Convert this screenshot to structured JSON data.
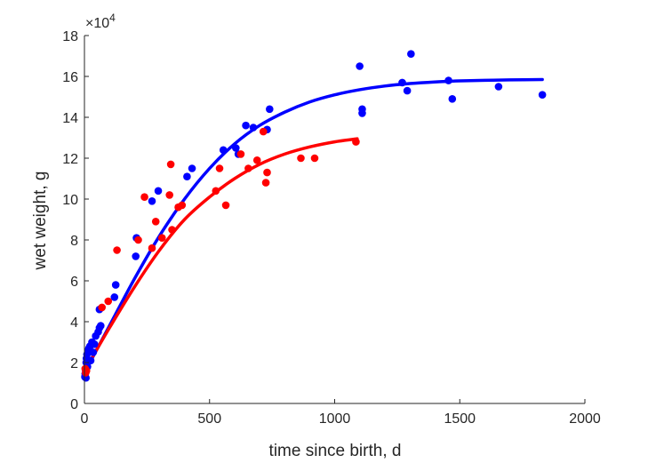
{
  "chart_data": {
    "type": "scatter",
    "title": "",
    "xlabel": "time since birth, d",
    "ylabel": "wet weight, g",
    "xlim": [
      0,
      2000
    ],
    "ylim": [
      0,
      180000
    ],
    "xticks": [
      "0",
      "500",
      "1000",
      "1500",
      "2000"
    ],
    "xtick_values": [
      0,
      500,
      1000,
      1500,
      2000
    ],
    "yticks": [
      "0",
      "2",
      "4",
      "6",
      "8",
      "10",
      "12",
      "14",
      "16",
      "18"
    ],
    "ytick_values": [
      0,
      20000,
      40000,
      60000,
      80000,
      100000,
      120000,
      140000,
      160000,
      180000
    ],
    "y_exponent": {
      "base": "×10",
      "power": "4"
    },
    "grid": false,
    "series": [
      {
        "kind": "scatter",
        "color": "#0000ff",
        "points": [
          [
            2,
            13000
          ],
          [
            3,
            14500
          ],
          [
            5,
            16000
          ],
          [
            6,
            12500
          ],
          [
            7,
            20000
          ],
          [
            8,
            22000
          ],
          [
            10,
            24000
          ],
          [
            12,
            18000
          ],
          [
            15,
            26000
          ],
          [
            18,
            27000
          ],
          [
            22,
            28000
          ],
          [
            25,
            21000
          ],
          [
            30,
            30000
          ],
          [
            35,
            25000
          ],
          [
            40,
            29000
          ],
          [
            45,
            33000
          ],
          [
            55,
            35000
          ],
          [
            60,
            37000
          ],
          [
            60,
            46000
          ],
          [
            65,
            38000
          ],
          [
            120,
            52000
          ],
          [
            125,
            58000
          ],
          [
            205,
            72000
          ],
          [
            208,
            81000
          ],
          [
            270,
            99000
          ],
          [
            295,
            104000
          ],
          [
            410,
            111000
          ],
          [
            430,
            115000
          ],
          [
            555,
            124000
          ],
          [
            605,
            125000
          ],
          [
            615,
            122000
          ],
          [
            645,
            136000
          ],
          [
            675,
            135000
          ],
          [
            730,
            134000
          ],
          [
            740,
            144000
          ],
          [
            1100,
            165000
          ],
          [
            1110,
            142000
          ],
          [
            1110,
            144000
          ],
          [
            1270,
            157000
          ],
          [
            1290,
            153000
          ],
          [
            1305,
            171000
          ],
          [
            1455,
            158000
          ],
          [
            1470,
            149000
          ],
          [
            1655,
            155000
          ],
          [
            1830,
            151000
          ]
        ]
      },
      {
        "kind": "scatter",
        "color": "#ff0000",
        "points": [
          [
            3,
            17000
          ],
          [
            5,
            15000
          ],
          [
            8,
            16000
          ],
          [
            70,
            47000
          ],
          [
            95,
            50000
          ],
          [
            130,
            75000
          ],
          [
            215,
            80000
          ],
          [
            240,
            101000
          ],
          [
            270,
            76000
          ],
          [
            285,
            89000
          ],
          [
            310,
            81000
          ],
          [
            340,
            102000
          ],
          [
            345,
            117000
          ],
          [
            350,
            85000
          ],
          [
            375,
            96000
          ],
          [
            390,
            97000
          ],
          [
            525,
            104000
          ],
          [
            540,
            115000
          ],
          [
            565,
            97000
          ],
          [
            625,
            122000
          ],
          [
            655,
            115000
          ],
          [
            690,
            119000
          ],
          [
            715,
            133000
          ],
          [
            725,
            108000
          ],
          [
            730,
            113000
          ],
          [
            865,
            120000
          ],
          [
            920,
            120000
          ],
          [
            1085,
            128000
          ]
        ]
      },
      {
        "kind": "line",
        "color": "#0000ff",
        "points": [
          [
            0,
            15000
          ],
          [
            100,
            38000
          ],
          [
            200,
            61000
          ],
          [
            300,
            82000
          ],
          [
            400,
            100000
          ],
          [
            500,
            115000
          ],
          [
            600,
            127000
          ],
          [
            700,
            136000
          ],
          [
            800,
            142500
          ],
          [
            900,
            147500
          ],
          [
            1000,
            151000
          ],
          [
            1100,
            153500
          ],
          [
            1200,
            155300
          ],
          [
            1300,
            156500
          ],
          [
            1400,
            157300
          ],
          [
            1500,
            157800
          ],
          [
            1600,
            158100
          ],
          [
            1700,
            158300
          ],
          [
            1830,
            158500
          ]
        ]
      },
      {
        "kind": "line",
        "color": "#ff0000",
        "points": [
          [
            0,
            16000
          ],
          [
            100,
            37000
          ],
          [
            200,
            57000
          ],
          [
            300,
            75000
          ],
          [
            400,
            90000
          ],
          [
            500,
            101000
          ],
          [
            600,
            110000
          ],
          [
            700,
            117000
          ],
          [
            800,
            122000
          ],
          [
            900,
            125500
          ],
          [
            1000,
            128000
          ],
          [
            1090,
            129500
          ]
        ]
      }
    ]
  }
}
